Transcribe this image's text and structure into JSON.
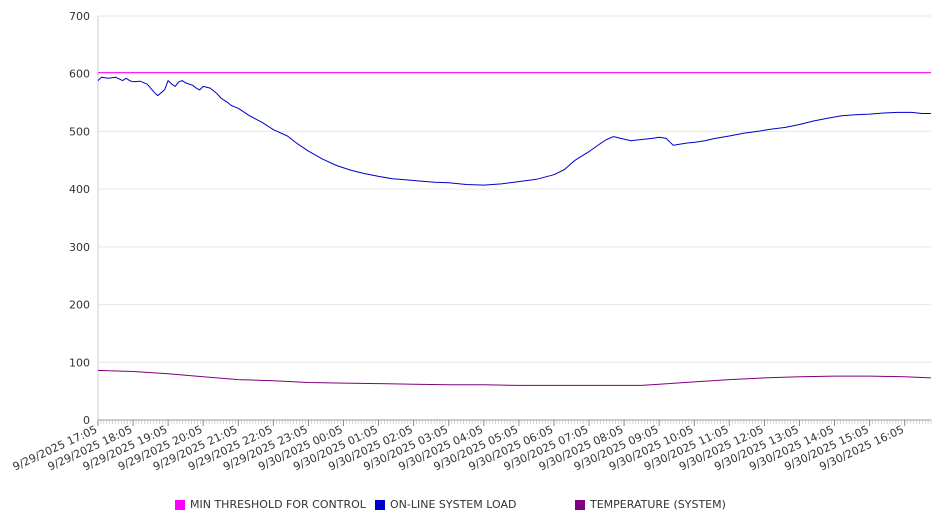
{
  "chart_data": {
    "type": "line",
    "title": "",
    "xlabel": "",
    "ylabel": "",
    "ylim": [
      0,
      700
    ],
    "yticks": [
      0,
      100,
      200,
      300,
      400,
      500,
      600,
      700
    ],
    "x_tick_labels": [
      "9/29/2025 17:05",
      "9/29/2025 18:05",
      "9/29/2025 19:05",
      "9/29/2025 20:05",
      "9/29/2025 21:05",
      "9/29/2025 22:05",
      "9/29/2025 23:05",
      "9/30/2025 00:05",
      "9/30/2025 01:05",
      "9/30/2025 02:05",
      "9/30/2025 03:05",
      "9/30/2025 04:05",
      "9/30/2025 05:05",
      "9/30/2025 06:05",
      "9/30/2025 07:05",
      "9/30/2025 08:05",
      "9/30/2025 09:05",
      "9/30/2025 10:05",
      "9/30/2025 11:05",
      "9/30/2025 12:05",
      "9/30/2025 13:05",
      "9/30/2025 14:05",
      "9/30/2025 15:05",
      "9/30/2025 16:05"
    ],
    "x_range_hours": [
      0,
      23.75
    ],
    "grid": true,
    "legend_position": "bottom",
    "series": [
      {
        "name": "MIN THRESHOLD FOR CONTROL",
        "color": "#ff00ff",
        "x": [
          0,
          23.75
        ],
        "y": [
          602,
          602
        ]
      },
      {
        "name": "ON-LINE SYSTEM LOAD",
        "color": "#0000cc",
        "x": [
          0,
          0.1,
          0.3,
          0.5,
          0.7,
          0.8,
          0.9,
          1.0,
          1.2,
          1.4,
          1.6,
          1.7,
          1.8,
          1.9,
          2.0,
          2.1,
          2.2,
          2.3,
          2.4,
          2.5,
          2.6,
          2.7,
          2.8,
          2.9,
          3.0,
          3.2,
          3.4,
          3.5,
          3.6,
          3.7,
          3.8,
          4.0,
          4.3,
          4.7,
          5.0,
          5.4,
          5.7,
          6.0,
          6.4,
          6.8,
          7.2,
          7.6,
          8.0,
          8.4,
          8.8,
          9.2,
          9.6,
          10.0,
          10.5,
          11.0,
          11.5,
          12.0,
          12.5,
          13.0,
          13.3,
          13.6,
          14.0,
          14.3,
          14.5,
          14.7,
          14.9,
          15.2,
          15.5,
          15.8,
          16.0,
          16.2,
          16.4,
          16.6,
          16.8,
          17.0,
          17.3,
          17.6,
          18.0,
          18.4,
          18.8,
          19.2,
          19.6,
          20.0,
          20.4,
          20.8,
          21.2,
          21.6,
          22.0,
          22.4,
          22.8,
          23.2,
          23.5,
          23.75
        ],
        "y": [
          588,
          594,
          592,
          594,
          588,
          592,
          588,
          586,
          587,
          582,
          568,
          562,
          567,
          572,
          588,
          582,
          578,
          586,
          588,
          584,
          582,
          580,
          575,
          572,
          578,
          575,
          565,
          558,
          554,
          550,
          545,
          540,
          528,
          515,
          503,
          492,
          478,
          466,
          452,
          441,
          433,
          427,
          422,
          418,
          416,
          414,
          412,
          411,
          408,
          407,
          409,
          413,
          417,
          425,
          434,
          450,
          465,
          478,
          486,
          491,
          488,
          484,
          486,
          488,
          490,
          488,
          476,
          478,
          480,
          481,
          484,
          488,
          492,
          497,
          500,
          504,
          507,
          512,
          518,
          523,
          527,
          529,
          530,
          532,
          533,
          533,
          531,
          531
        ]
      },
      {
        "name": "TEMPERATURE (SYSTEM)",
        "color": "#800080",
        "x": [
          0,
          1,
          2,
          3,
          4,
          5,
          6,
          7,
          8,
          9,
          10,
          11,
          12,
          13,
          14,
          15,
          15.5,
          16,
          17,
          18,
          19,
          20,
          21,
          22,
          23,
          23.75
        ],
        "y": [
          86,
          84,
          80,
          75,
          70,
          68,
          65,
          64,
          63,
          62,
          61,
          61,
          60,
          60,
          60,
          60,
          60,
          62,
          66,
          70,
          73,
          75,
          76,
          76,
          75,
          73
        ]
      }
    ]
  }
}
